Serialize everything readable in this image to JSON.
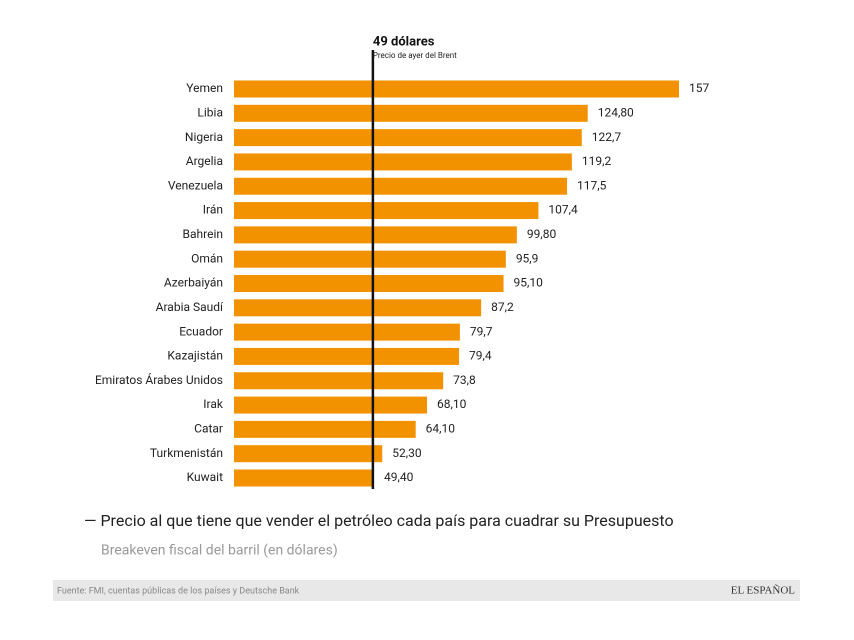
{
  "chart_data": {
    "type": "bar",
    "orientation": "horizontal",
    "title": "— Precio al que tiene que vender el petróleo cada país para cuadrar su Presupuesto",
    "subtitle": "Breakeven fiscal del barril (en dólares)",
    "source": "Fuente: FMI, cuentas públicas de los países y Deutsche Bank",
    "brand": "EL ESPAÑOL",
    "categories": [
      "Yemen",
      "Libia",
      "Nigeria",
      "Argelia",
      "Venezuela",
      "Irán",
      "Bahrein",
      "Omán",
      "Azerbaiyán",
      "Arabia Saudí",
      "Ecuador",
      "Kazajistán",
      "Emiratos Árabes Unidos",
      "Irak",
      "Catar",
      "Turkmenistán",
      "Kuwait"
    ],
    "values": [
      157,
      124.8,
      122.7,
      119.2,
      117.5,
      107.4,
      99.8,
      95.9,
      95.1,
      87.2,
      79.7,
      79.4,
      73.8,
      68.1,
      64.1,
      52.3,
      49.4
    ],
    "value_labels": [
      "157",
      "124,80",
      "122,7",
      "119,2",
      "117,5",
      "107,4",
      "99,80",
      "95,9",
      "95,10",
      "87,2",
      "79,7",
      "79,4",
      "73,8",
      "68,10",
      "64,10",
      "52,30",
      "49,40"
    ],
    "color": "#f39200",
    "xlim": [
      0,
      157
    ],
    "reference_line": {
      "value": 49,
      "label": "49 dólares",
      "sublabel": "Precio de ayer del Brent",
      "color": "#111111"
    }
  }
}
